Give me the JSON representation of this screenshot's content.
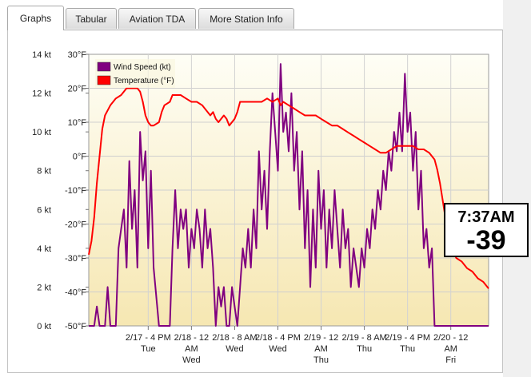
{
  "tabs": [
    {
      "label": "Graphs",
      "active": true
    },
    {
      "label": "Tabular",
      "active": false
    },
    {
      "label": "Aviation TDA",
      "active": false
    },
    {
      "label": "More Station Info",
      "active": false
    }
  ],
  "overlay": {
    "time": "7:37AM",
    "value": "-39"
  },
  "chart_data": {
    "type": "line",
    "title": "",
    "legend": {
      "placement": "top-left",
      "entries": [
        "Wind Speed (kt)",
        "Temperature (°F)"
      ]
    },
    "left_axis": {
      "ticks": [
        "0 kt",
        "2 kt",
        "4 kt",
        "6 kt",
        "8 kt",
        "10 kt",
        "12 kt",
        "14 kt"
      ],
      "range": [
        0,
        14
      ]
    },
    "right_axis": {
      "ticks": [
        "-50°F",
        "-40°F",
        "-30°F",
        "-20°F",
        "-10°F",
        "0°F",
        "10°F",
        "20°F",
        "30°F"
      ],
      "range": [
        -50,
        30
      ]
    },
    "x_ticks": [
      {
        "t": 16,
        "lines": [
          "2/17 - 4 PM",
          "Tue",
          ""
        ]
      },
      {
        "t": 24,
        "lines": [
          "2/18 - 12",
          "AM",
          "Wed"
        ]
      },
      {
        "t": 32,
        "lines": [
          "2/18 - 8 AM",
          "Wed",
          ""
        ]
      },
      {
        "t": 40,
        "lines": [
          "2/18 - 4 PM",
          "Wed",
          ""
        ]
      },
      {
        "t": 48,
        "lines": [
          "2/19 - 12",
          "AM",
          "Thu"
        ]
      },
      {
        "t": 56,
        "lines": [
          "2/19 - 8 AM",
          "Thu",
          ""
        ]
      },
      {
        "t": 64,
        "lines": [
          "2/19 - 4 PM",
          "Thu",
          ""
        ]
      },
      {
        "t": 72,
        "lines": [
          "2/20 - 12",
          "AM",
          "Fri"
        ]
      }
    ],
    "x_range": [
      5,
      79
    ],
    "series": [
      {
        "name": "Temperature (°F)",
        "color": "#ff0000",
        "axis": "right",
        "points": [
          [
            5,
            -29
          ],
          [
            5.5,
            -25
          ],
          [
            6,
            -18
          ],
          [
            6.5,
            -8
          ],
          [
            7,
            0
          ],
          [
            7.5,
            8
          ],
          [
            8,
            12
          ],
          [
            9,
            15
          ],
          [
            10,
            17
          ],
          [
            11,
            18
          ],
          [
            12,
            20
          ],
          [
            13,
            20
          ],
          [
            14,
            20
          ],
          [
            14.5,
            19
          ],
          [
            15,
            16
          ],
          [
            15.5,
            12
          ],
          [
            16,
            10
          ],
          [
            16.5,
            9
          ],
          [
            17,
            9
          ],
          [
            18,
            10
          ],
          [
            18.5,
            13
          ],
          [
            19,
            15
          ],
          [
            20,
            16
          ],
          [
            20.5,
            18
          ],
          [
            21,
            18
          ],
          [
            22,
            18
          ],
          [
            23,
            17
          ],
          [
            24,
            16
          ],
          [
            25,
            16
          ],
          [
            26,
            15
          ],
          [
            27,
            13
          ],
          [
            27.5,
            12
          ],
          [
            28,
            13
          ],
          [
            28.5,
            11
          ],
          [
            29,
            10
          ],
          [
            30,
            12
          ],
          [
            30.5,
            11
          ],
          [
            31,
            9
          ],
          [
            32,
            11
          ],
          [
            32.5,
            13
          ],
          [
            33,
            16
          ],
          [
            34,
            16
          ],
          [
            35,
            16
          ],
          [
            36,
            16
          ],
          [
            37,
            16
          ],
          [
            38,
            17
          ],
          [
            39,
            16
          ],
          [
            40,
            17
          ],
          [
            40.5,
            15
          ],
          [
            41,
            16
          ],
          [
            42,
            15
          ],
          [
            43,
            14
          ],
          [
            44,
            13
          ],
          [
            45,
            12
          ],
          [
            46,
            12
          ],
          [
            47,
            12
          ],
          [
            48,
            11
          ],
          [
            49,
            10
          ],
          [
            50,
            9
          ],
          [
            51,
            9
          ],
          [
            52,
            8
          ],
          [
            53,
            7
          ],
          [
            54,
            6
          ],
          [
            55,
            5
          ],
          [
            56,
            4
          ],
          [
            57,
            3
          ],
          [
            58,
            2
          ],
          [
            59,
            1
          ],
          [
            60,
            1
          ],
          [
            61,
            2
          ],
          [
            62,
            3
          ],
          [
            63,
            3
          ],
          [
            64,
            3
          ],
          [
            65,
            3
          ],
          [
            66,
            2
          ],
          [
            67,
            2
          ],
          [
            68,
            1
          ],
          [
            69,
            -1
          ],
          [
            69.5,
            -4
          ],
          [
            70,
            -8
          ],
          [
            70.5,
            -13
          ],
          [
            71,
            -18
          ],
          [
            71.5,
            -22
          ],
          [
            72,
            -25
          ],
          [
            72.5,
            -28
          ],
          [
            73,
            -30
          ],
          [
            74,
            -31
          ],
          [
            75,
            -33
          ],
          [
            76,
            -34
          ],
          [
            77,
            -36
          ],
          [
            78,
            -37
          ],
          [
            79,
            -39
          ]
        ]
      },
      {
        "name": "Wind Speed (kt)",
        "color": "#800080",
        "axis": "left",
        "points": [
          [
            5,
            0
          ],
          [
            6,
            0
          ],
          [
            6.5,
            1
          ],
          [
            7,
            0
          ],
          [
            8,
            0
          ],
          [
            8.5,
            2
          ],
          [
            9,
            0
          ],
          [
            10,
            0
          ],
          [
            10.5,
            4
          ],
          [
            11,
            5
          ],
          [
            11.5,
            6
          ],
          [
            12,
            3
          ],
          [
            12.5,
            8.5
          ],
          [
            13,
            5
          ],
          [
            13.5,
            7
          ],
          [
            14,
            3
          ],
          [
            14.5,
            10
          ],
          [
            15,
            7.5
          ],
          [
            15.5,
            9
          ],
          [
            16,
            4
          ],
          [
            16.5,
            8
          ],
          [
            17,
            3
          ],
          [
            18,
            0
          ],
          [
            19,
            0
          ],
          [
            20,
            0
          ],
          [
            20.5,
            4
          ],
          [
            21,
            7
          ],
          [
            21.5,
            4
          ],
          [
            22,
            6
          ],
          [
            22.5,
            5
          ],
          [
            23,
            6
          ],
          [
            23.5,
            3
          ],
          [
            24,
            5
          ],
          [
            24.5,
            4
          ],
          [
            25,
            6
          ],
          [
            25.5,
            5
          ],
          [
            26,
            3
          ],
          [
            26.5,
            6
          ],
          [
            27,
            4
          ],
          [
            27.5,
            5
          ],
          [
            28,
            3
          ],
          [
            28.5,
            0
          ],
          [
            29,
            2
          ],
          [
            29.5,
            1
          ],
          [
            30,
            2
          ],
          [
            30.5,
            0
          ],
          [
            31,
            0
          ],
          [
            31.5,
            2
          ],
          [
            32,
            1
          ],
          [
            32.5,
            0
          ],
          [
            33,
            2
          ],
          [
            33.5,
            4
          ],
          [
            34,
            3
          ],
          [
            34.5,
            5
          ],
          [
            35,
            3
          ],
          [
            35.5,
            6
          ],
          [
            36,
            4
          ],
          [
            36.5,
            9
          ],
          [
            37,
            6
          ],
          [
            37.5,
            8
          ],
          [
            38,
            5
          ],
          [
            38.5,
            9
          ],
          [
            39,
            12
          ],
          [
            39.5,
            10
          ],
          [
            40,
            8
          ],
          [
            40.5,
            13.5
          ],
          [
            41,
            10
          ],
          [
            41.5,
            11
          ],
          [
            42,
            9
          ],
          [
            42.5,
            12
          ],
          [
            43,
            8
          ],
          [
            43.5,
            10
          ],
          [
            44,
            6
          ],
          [
            44.5,
            9
          ],
          [
            45,
            4
          ],
          [
            45.5,
            7
          ],
          [
            46,
            2
          ],
          [
            46.5,
            6
          ],
          [
            47,
            3
          ],
          [
            47.5,
            8
          ],
          [
            48,
            5
          ],
          [
            48.5,
            7
          ],
          [
            49,
            3
          ],
          [
            49.5,
            6
          ],
          [
            50,
            4
          ],
          [
            50.5,
            7
          ],
          [
            51,
            5
          ],
          [
            51.5,
            3
          ],
          [
            52,
            6
          ],
          [
            52.5,
            4
          ],
          [
            53,
            5
          ],
          [
            53.5,
            2
          ],
          [
            54,
            4
          ],
          [
            54.5,
            3
          ],
          [
            55,
            2
          ],
          [
            55.5,
            4
          ],
          [
            56,
            3
          ],
          [
            56.5,
            5
          ],
          [
            57,
            4
          ],
          [
            57.5,
            6
          ],
          [
            58,
            5
          ],
          [
            58.5,
            7
          ],
          [
            59,
            6
          ],
          [
            59.5,
            8
          ],
          [
            60,
            7
          ],
          [
            60.5,
            9
          ],
          [
            61,
            8
          ],
          [
            61.5,
            10
          ],
          [
            62,
            9
          ],
          [
            62.5,
            11
          ],
          [
            63,
            9
          ],
          [
            63.5,
            13
          ],
          [
            64,
            10
          ],
          [
            64.5,
            11
          ],
          [
            65,
            8
          ],
          [
            65.5,
            10
          ],
          [
            66,
            6
          ],
          [
            66.5,
            8
          ],
          [
            67,
            4
          ],
          [
            67.5,
            5
          ],
          [
            68,
            3
          ],
          [
            68.5,
            4
          ],
          [
            69,
            0
          ],
          [
            70,
            0
          ],
          [
            72,
            0
          ],
          [
            74,
            0
          ],
          [
            76,
            0
          ],
          [
            78,
            0
          ],
          [
            79,
            0
          ]
        ]
      }
    ]
  }
}
